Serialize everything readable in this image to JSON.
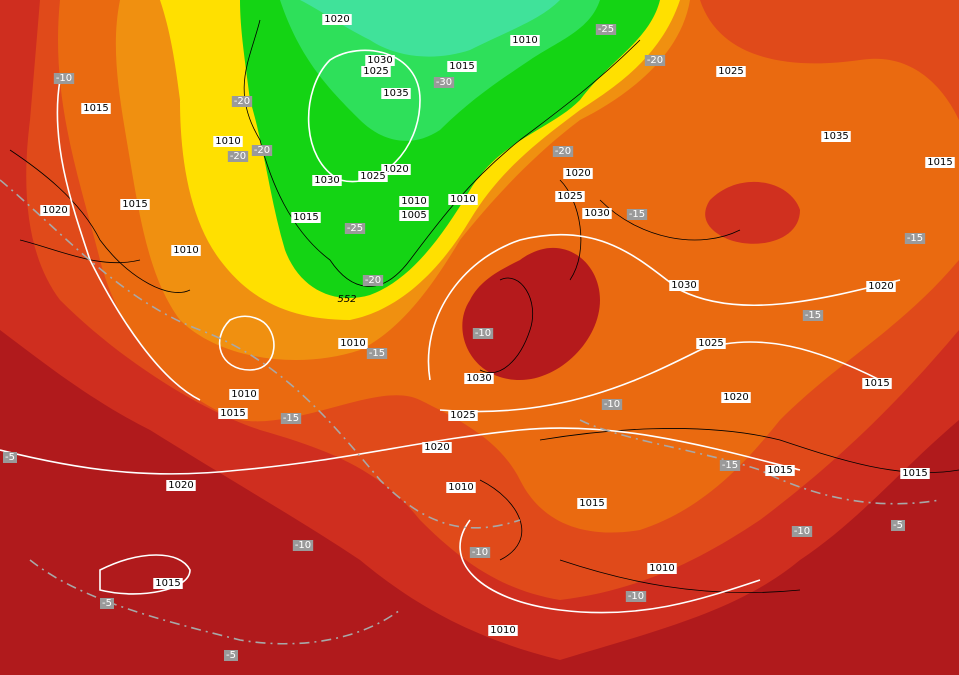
{
  "isobar_labels": [
    "1020",
    "1010",
    "1030",
    "1025",
    "1015",
    "1035",
    "1025",
    "1015",
    "1010",
    "1020",
    "1030",
    "1025",
    "1015",
    "1010",
    "1005",
    "1010",
    "1020",
    "1025",
    "1030",
    "1035",
    "1015",
    "1020",
    "1015",
    "1010",
    "1030",
    "1020",
    "1010",
    "1025",
    "1030",
    "1010",
    "1015",
    "1025",
    "1020",
    "1015",
    "1020",
    "1015",
    "1015",
    "1020",
    "1010",
    "1015",
    "1015",
    "1010",
    "1010"
  ],
  "temperature_labels": [
    "-10",
    "-25",
    "-20",
    "-30",
    "-20",
    "-20",
    "-20",
    "-20",
    "-15",
    "-25",
    "-15",
    "-20",
    "-15",
    "-10",
    "-15",
    "-15",
    "-10",
    "-15",
    "-10",
    "-5",
    "-5",
    "-10",
    "-10",
    "-5",
    "-10",
    "-5"
  ],
  "thickness_label": "552"
}
